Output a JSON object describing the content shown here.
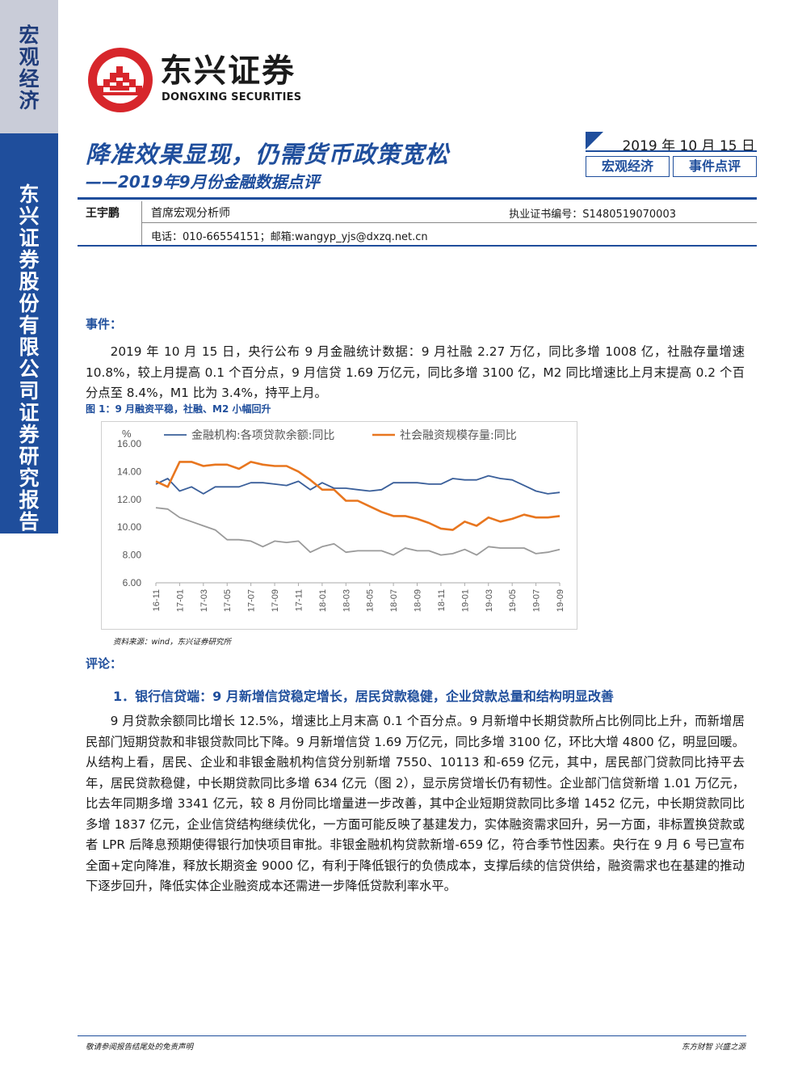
{
  "sidebar": {
    "category": "宏观经济",
    "company": "东兴证券股份有限公司证券研究报告"
  },
  "brand": {
    "cn": "东兴证券",
    "en": "DONGXING SECURITIES",
    "color": "#d7262b"
  },
  "report": {
    "title": "降准效果显现，仍需货币政策宽松",
    "subtitle": "——2019年9月份金融数据点评",
    "date": "2019 年 10 月 15 日",
    "tags": [
      "宏观经济",
      "事件点评"
    ]
  },
  "author": {
    "name": "王宇鹏",
    "role": "首席宏观分析师",
    "cert": "执业证书编号：S1480519070003",
    "contact": "电话：010-66554151；邮箱:wangyp_yjs@dxzq.net.cn"
  },
  "event": {
    "heading": "事件：",
    "text": "2019 年 10 月 15 日，央行公布 9 月金融统计数据：9 月社融 2.27 万亿，同比多增 1008 亿，社融存量增速 10.8%，较上月提高 0.1 个百分点，9 月信贷 1.69 万亿元，同比多增 3100 亿，M2 同比增速比上月末提高 0.2 个百分点至 8.4%，M1 比为 3.4%，持平上月。"
  },
  "figure": {
    "caption": "图 1：9 月融资平稳，社融、M2 小幅回升",
    "source": "资料来源：wind，东兴证券研究所"
  },
  "chart_data": {
    "type": "line",
    "ylabel": "%",
    "ylim": [
      6,
      16
    ],
    "yticks": [
      "16.00",
      "14.00",
      "12.00",
      "10.00",
      "8.00",
      "6.00"
    ],
    "x": [
      "16-11",
      "16-12",
      "17-01",
      "17-02",
      "17-03",
      "17-04",
      "17-05",
      "17-06",
      "17-07",
      "17-08",
      "17-09",
      "17-10",
      "17-11",
      "17-12",
      "18-01",
      "18-02",
      "18-03",
      "18-04",
      "18-05",
      "18-06",
      "18-07",
      "18-08",
      "18-09",
      "18-10",
      "18-11",
      "18-12",
      "19-01",
      "19-02",
      "19-03",
      "19-04",
      "19-05",
      "19-06",
      "19-07",
      "19-08",
      "19-09"
    ],
    "xticks": [
      "16-11",
      "17-01",
      "17-03",
      "17-05",
      "17-07",
      "17-09",
      "17-11",
      "18-01",
      "18-03",
      "18-05",
      "18-07",
      "18-09",
      "18-11",
      "19-01",
      "19-03",
      "19-05",
      "19-07",
      "19-09"
    ],
    "series": [
      {
        "name": "金融机构:各项贷款余额:同比",
        "color": "#3a5f9a",
        "in_legend": true,
        "values": [
          13.1,
          13.5,
          12.6,
          12.9,
          12.4,
          12.9,
          12.9,
          12.9,
          13.2,
          13.2,
          13.1,
          13.0,
          13.3,
          12.7,
          13.2,
          12.8,
          12.8,
          12.7,
          12.6,
          12.7,
          13.2,
          13.2,
          13.2,
          13.1,
          13.1,
          13.5,
          13.4,
          13.4,
          13.7,
          13.5,
          13.4,
          13.0,
          12.6,
          12.4,
          12.5
        ]
      },
      {
        "name": "社会融资规模存量:同比",
        "color": "#e8761f",
        "in_legend": true,
        "values": [
          13.3,
          12.9,
          14.7,
          14.7,
          14.4,
          14.5,
          14.5,
          14.2,
          14.7,
          14.5,
          14.4,
          14.4,
          14.0,
          13.4,
          12.7,
          12.7,
          11.9,
          11.9,
          11.5,
          11.1,
          10.8,
          10.8,
          10.6,
          10.3,
          9.9,
          9.8,
          10.4,
          10.1,
          10.7,
          10.4,
          10.6,
          10.9,
          10.7,
          10.7,
          10.8
        ]
      },
      {
        "name": "M2",
        "color": "#9a9a9a",
        "in_legend": false,
        "values": [
          11.4,
          11.3,
          10.7,
          10.4,
          10.1,
          9.8,
          9.1,
          9.1,
          9.0,
          8.6,
          9.0,
          8.9,
          9.0,
          8.2,
          8.6,
          8.8,
          8.2,
          8.3,
          8.3,
          8.3,
          8.0,
          8.5,
          8.3,
          8.3,
          8.0,
          8.1,
          8.4,
          8.0,
          8.6,
          8.5,
          8.5,
          8.5,
          8.1,
          8.2,
          8.4
        ]
      }
    ]
  },
  "comment": {
    "heading": "评论：",
    "point1": "1．银行信贷端：9 月新增信贷稳定增长，居民贷款稳健，企业贷款总量和结构明显改善",
    "text": "9 月贷款余额同比增长 12.5%，增速比上月末高 0.1 个百分点。9 月新增中长期贷款所占比例同比上升，而新增居民部门短期贷款和非银贷款同比下降。9 月新增信贷 1.69 万亿元，同比多增 3100 亿，环比大增 4800 亿，明显回暖。从结构上看，居民、企业和非银金融机构信贷分别新增 7550、10113 和-659 亿元，其中，居民部门贷款同比持平去年，居民贷款稳健，中长期贷款同比多增 634 亿元（图 2），显示房贷增长仍有韧性。企业部门信贷新增 1.01 万亿元，比去年同期多增 3341 亿元，较 8 月份同比增量进一步改善，其中企业短期贷款同比多增 1452 亿元，中长期贷款同比多增 1837 亿元，企业信贷结构继续优化，一方面可能反映了基建发力，实体融资需求回升，另一方面，非标置换贷款或者 LPR 后降息预期使得银行加快项目审批。非银金融机构贷款新增-659 亿，符合季节性因素。央行在 9 月 6 号已宣布全面+定向降准，释放长期资金 9000 亿，有利于降低银行的负债成本，支撑后续的信贷供给，融资需求也在基建的推动下逐步回升，降低实体企业融资成本还需进一步降低贷款利率水平。"
  },
  "footer": {
    "left": "敬请参阅报告结尾处的免责声明",
    "right": "东方财智  兴盛之源"
  },
  "colors": {
    "primary": "#1f4e9c",
    "sidebar_light": "#c9ccd8",
    "logo_red": "#d7262b"
  }
}
